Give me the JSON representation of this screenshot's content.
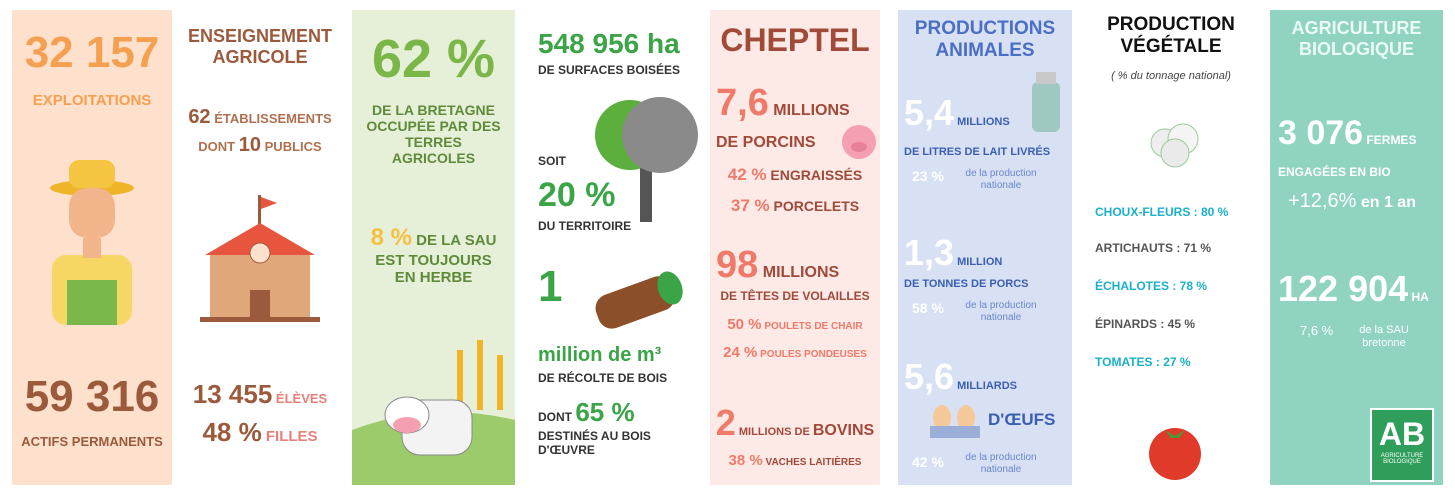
{
  "exploitations": {
    "value": "32 157",
    "label": "EXPLOITATIONS",
    "actifs_value": "59 316",
    "actifs_label": "ACTIFS PERMANENTS"
  },
  "enseignement": {
    "title": "ENSEIGNEMENT AGRICOLE",
    "etab_value": "62",
    "etab_label": "ÉTABLISSEMENTS",
    "dont": "DONT",
    "publics_value": "10",
    "publics_label": "PUBLICS",
    "eleves_value": "13 455",
    "eleves_label": "ÉLÈVES",
    "filles_value": "48 %",
    "filles_label": "FILLES"
  },
  "terres": {
    "value": "62 %",
    "label": "DE LA BRETAGNE OCCUPÉE PAR DES TERRES AGRICOLES",
    "herbe_value": "8 %",
    "herbe_label": "DE LA SAU EST TOUJOURS EN HERBE"
  },
  "bois": {
    "value": "548 956 ha",
    "label": "DE SURFACES BOISÉES",
    "soit": "SOIT",
    "territoire_value": "20 %",
    "territoire_label": "DU TERRITOIRE",
    "recolte_value": "1",
    "recolte_unit": "million de m³",
    "recolte_label": "DE RÉCOLTE DE BOIS",
    "dont": "DONT",
    "oeuvre_value": "65 %",
    "oeuvre_label": "DESTINÉS AU BOIS D'ŒUVRE"
  },
  "cheptel": {
    "title": "CHEPTEL",
    "porcins_value": "7,6",
    "porcins_unit": "MILLIONS",
    "porcins_label": "DE PORCINS",
    "engraisses_value": "42 %",
    "engraisses_label": "ENGRAISSÉS",
    "porcelets_value": "37 %",
    "porcelets_label": "PORCELETS",
    "volailles_value": "98",
    "volailles_unit": "MILLIONS",
    "volailles_label": "DE TÊTES DE VOLAILLES",
    "chair_value": "50 %",
    "chair_label": "POULETS DE CHAIR",
    "pondeuses_value": "24 %",
    "pondeuses_label": "POULES PONDEUSES",
    "bovins_value": "2",
    "bovins_unit": "MILLIONS DE",
    "bovins_label": "BOVINS",
    "laitieres_value": "38 %",
    "laitieres_label": "VACHES LAITIÈRES"
  },
  "animales": {
    "title": "PRODUCTIONS ANIMALES",
    "items": [
      {
        "value": "5,4",
        "unit": "MILLIONS",
        "label": "DE LITRES DE LAIT LIVRÉS",
        "share": "23 %",
        "share_label": "de la production nationale"
      },
      {
        "value": "1,3",
        "unit": "MILLION",
        "label": "DE TONNES DE PORCS",
        "share": "58 %",
        "share_label": "de la production nationale"
      },
      {
        "value": "5,6",
        "unit": "MILLIARDS",
        "label": "D'ŒUFS",
        "share": "42 %",
        "share_label": "de la production nationale"
      }
    ]
  },
  "vegetale": {
    "title": "PRODUCTION VÉGÉTALE",
    "subtitle": "( % du tonnage national)",
    "items": [
      "CHOUX-FLEURS : 80 %",
      "ARTICHAUTS : 71 %",
      "ÉCHALOTES : 78 %",
      "ÉPINARDS : 45 %",
      "TOMATES : 27 %"
    ]
  },
  "bio": {
    "title": "AGRICULTURE BIOLOGIQUE",
    "fermes_value": "3 076",
    "fermes_unit": "FERMES",
    "fermes_label": "ENGAGÉES EN BIO",
    "evolution_value": "+12,6%",
    "evolution_label": "en 1 an",
    "sau_value": "122 904",
    "sau_unit": "HA",
    "sau_share": "7,6 %",
    "sau_label": "de la SAU bretonne",
    "logo": "AB",
    "logo_label": "AGRICULTURE BIOLOGIQUE"
  }
}
